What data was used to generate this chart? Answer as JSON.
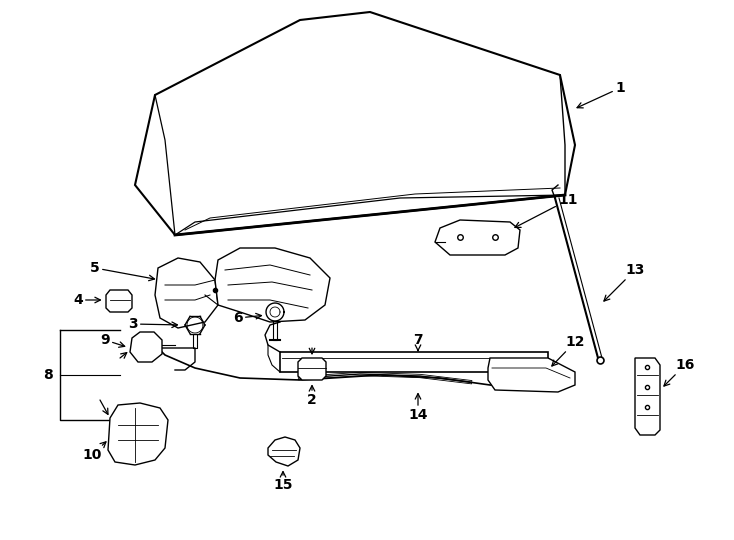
{
  "bg_color": "#ffffff",
  "line_color": "#000000",
  "label_color": "#000000",
  "label_fontsize": 10,
  "fig_width": 7.34,
  "fig_height": 5.4,
  "dpi": 100
}
